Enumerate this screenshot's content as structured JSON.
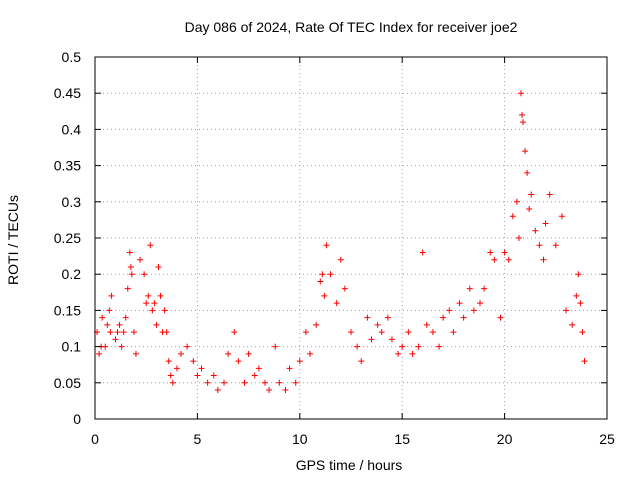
{
  "chart_data": {
    "type": "scatter",
    "title": "Day 086 of 2024, Rate Of TEC Index for receiver joe2",
    "xlabel": "GPS time / hours",
    "ylabel": "ROTI / TECUs",
    "xlim": [
      0,
      25
    ],
    "ylim": [
      0,
      0.5
    ],
    "xticks": [
      0,
      5,
      10,
      15,
      20,
      25
    ],
    "xtick_labels": [
      "0",
      "5",
      "10",
      "15",
      "20",
      "25"
    ],
    "yticks": [
      0,
      0.05,
      0.1,
      0.15,
      0.2,
      0.25,
      0.3,
      0.35,
      0.4,
      0.45,
      0.5
    ],
    "ytick_labels": [
      "0",
      "0.05",
      "0.1",
      "0.15",
      "0.2",
      "0.25",
      "0.3",
      "0.35",
      "0.4",
      "0.45",
      "0.5"
    ],
    "grid": true,
    "marker": "+",
    "color": "#ff0000",
    "series": [
      {
        "x": [
          0.1,
          0.2,
          0.3,
          0.35,
          0.5,
          0.6,
          0.7,
          0.75,
          0.8,
          1.0,
          1.1,
          1.2,
          1.3,
          1.4,
          1.5,
          1.6,
          1.7,
          1.75,
          1.8,
          1.9,
          2.0,
          2.2,
          2.4,
          2.5,
          2.6,
          2.7,
          2.8,
          2.9,
          3.0,
          3.1,
          3.2,
          3.3,
          3.4,
          3.5,
          3.6,
          3.7,
          3.8,
          4.0,
          4.2,
          4.5,
          4.8,
          5.0,
          5.2,
          5.5,
          5.8,
          6.0,
          6.3,
          6.5,
          6.8,
          7.0,
          7.3,
          7.5,
          7.8,
          8.0,
          8.3,
          8.5,
          8.8,
          9.0,
          9.3,
          9.5,
          9.8,
          10.0,
          10.3,
          10.5,
          10.8,
          11.0,
          11.1,
          11.2,
          11.3,
          11.5,
          11.8,
          12.0,
          12.2,
          12.5,
          12.8,
          13.0,
          13.3,
          13.5,
          13.8,
          14.0,
          14.3,
          14.5,
          14.8,
          15.0,
          15.3,
          15.5,
          15.8,
          16.0,
          16.2,
          16.5,
          16.8,
          17.0,
          17.3,
          17.5,
          17.8,
          18.0,
          18.3,
          18.5,
          18.8,
          19.0,
          19.3,
          19.5,
          19.8,
          20.0,
          20.2,
          20.4,
          20.6,
          20.7,
          20.8,
          20.85,
          20.9,
          21.0,
          21.1,
          21.2,
          21.3,
          21.5,
          21.7,
          21.9,
          22.0,
          22.2,
          22.5,
          22.8,
          23.0,
          23.3,
          23.5,
          23.6,
          23.7,
          23.8,
          23.9
        ],
        "y": [
          0.12,
          0.09,
          0.1,
          0.14,
          0.1,
          0.13,
          0.15,
          0.12,
          0.17,
          0.11,
          0.12,
          0.13,
          0.1,
          0.12,
          0.14,
          0.18,
          0.23,
          0.21,
          0.2,
          0.12,
          0.09,
          0.22,
          0.2,
          0.16,
          0.17,
          0.24,
          0.15,
          0.16,
          0.13,
          0.21,
          0.17,
          0.12,
          0.15,
          0.12,
          0.08,
          0.06,
          0.05,
          0.07,
          0.09,
          0.1,
          0.08,
          0.06,
          0.07,
          0.05,
          0.06,
          0.04,
          0.05,
          0.09,
          0.12,
          0.08,
          0.05,
          0.09,
          0.06,
          0.07,
          0.05,
          0.04,
          0.1,
          0.05,
          0.04,
          0.07,
          0.05,
          0.08,
          0.12,
          0.09,
          0.13,
          0.19,
          0.2,
          0.17,
          0.24,
          0.2,
          0.16,
          0.22,
          0.18,
          0.12,
          0.1,
          0.08,
          0.14,
          0.11,
          0.13,
          0.12,
          0.14,
          0.11,
          0.09,
          0.1,
          0.12,
          0.09,
          0.1,
          0.23,
          0.13,
          0.12,
          0.1,
          0.14,
          0.15,
          0.12,
          0.16,
          0.14,
          0.18,
          0.15,
          0.16,
          0.18,
          0.23,
          0.22,
          0.14,
          0.23,
          0.22,
          0.28,
          0.3,
          0.25,
          0.45,
          0.42,
          0.41,
          0.37,
          0.34,
          0.29,
          0.31,
          0.26,
          0.24,
          0.22,
          0.27,
          0.31,
          0.24,
          0.28,
          0.15,
          0.13,
          0.17,
          0.2,
          0.16,
          0.12,
          0.08
        ]
      }
    ]
  }
}
